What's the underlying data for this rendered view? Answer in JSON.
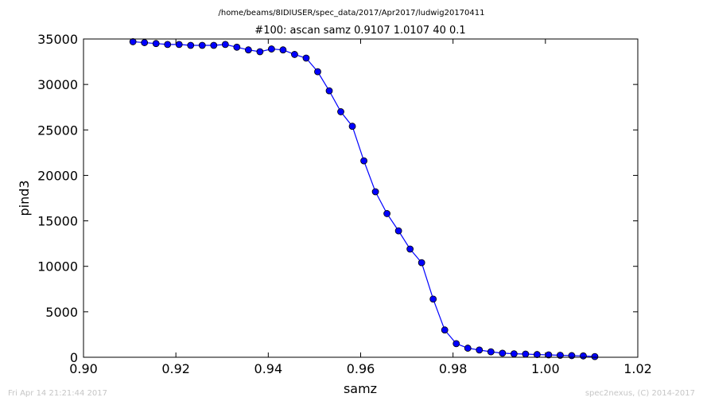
{
  "footer": {
    "timestamp": "Fri Apr 14 21:21:44 2017",
    "credit": "spec2nexus, (C) 2014-2017"
  },
  "chart_data": {
    "type": "line",
    "title": "#100: ascan  samz 0.9107 1.0107  40 0.1",
    "subtitle": "/home/beams/8IDIUSER/spec_data/2017/Apr2017/ludwig20170411",
    "xlabel": "samz",
    "ylabel": "pind3",
    "xlim": [
      0.9,
      1.02
    ],
    "ylim": [
      0,
      35000
    ],
    "xticks": [
      "0.90",
      "0.92",
      "0.94",
      "0.96",
      "0.98",
      "1.00",
      "1.02"
    ],
    "yticks": [
      "0",
      "5000",
      "10000",
      "15000",
      "20000",
      "25000",
      "30000",
      "35000"
    ],
    "grid": false,
    "series": [
      {
        "color": "#0000ff",
        "marker": "circle",
        "x": [
          0.9107,
          0.9132,
          0.9157,
          0.9182,
          0.9207,
          0.9232,
          0.9257,
          0.9282,
          0.9307,
          0.9332,
          0.9357,
          0.9382,
          0.9407,
          0.9432,
          0.9457,
          0.9482,
          0.9507,
          0.9532,
          0.9557,
          0.9582,
          0.9607,
          0.9632,
          0.9657,
          0.9682,
          0.9707,
          0.9732,
          0.9757,
          0.9782,
          0.9807,
          0.9832,
          0.9857,
          0.9882,
          0.9907,
          0.9932,
          0.9957,
          0.9982,
          1.0007,
          1.0032,
          1.0057,
          1.0082,
          1.0107
        ],
        "y": [
          34700,
          34600,
          34500,
          34400,
          34400,
          34300,
          34300,
          34300,
          34400,
          34100,
          33800,
          33600,
          33900,
          33800,
          33300,
          32900,
          31400,
          29300,
          27000,
          25400,
          21600,
          18200,
          15800,
          13900,
          11900,
          10400,
          6400,
          3000,
          1500,
          1000,
          800,
          600,
          450,
          380,
          350,
          300,
          260,
          220,
          180,
          150,
          80
        ]
      }
    ]
  }
}
